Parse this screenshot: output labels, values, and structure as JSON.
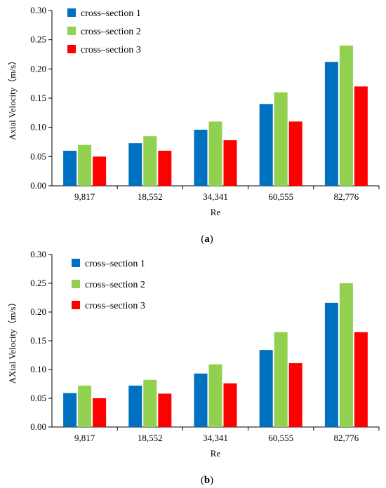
{
  "chart_data": [
    {
      "type": "bar",
      "caption": {
        "open": "(",
        "letter": "a",
        "close": ")"
      },
      "xlabel": "Re",
      "ylabel": "Axial Velocity（m/s）",
      "categories": [
        "9,817",
        "18,552",
        "34,341",
        "60,555",
        "82,776"
      ],
      "ylim": [
        0,
        0.3
      ],
      "yticks": [
        "0.00",
        "0.05",
        "0.10",
        "0.15",
        "0.20",
        "0.25",
        "0.30"
      ],
      "legend_position": "top-left",
      "grid": false,
      "series": [
        {
          "name": "cross–section 1",
          "color": "#0070c0",
          "values": [
            0.06,
            0.073,
            0.096,
            0.14,
            0.212
          ]
        },
        {
          "name": "cross–section 2",
          "color": "#92d050",
          "values": [
            0.07,
            0.085,
            0.11,
            0.16,
            0.24
          ]
        },
        {
          "name": "cross–section 3",
          "color": "#ff0000",
          "values": [
            0.05,
            0.06,
            0.078,
            0.11,
            0.17
          ]
        }
      ]
    },
    {
      "type": "bar",
      "caption": {
        "open": "(",
        "letter": "b",
        "close": ")"
      },
      "xlabel": "Re",
      "ylabel": "AXial Velocity（m/s）",
      "categories": [
        "9,817",
        "18,552",
        "34,341",
        "60,555",
        "82,776"
      ],
      "ylim": [
        0,
        0.3
      ],
      "yticks": [
        "0.00",
        "0.05",
        "0.10",
        "0.15",
        "0.20",
        "0.25",
        "0.30"
      ],
      "legend_position": "top-left",
      "grid": false,
      "series": [
        {
          "name": "cross–section 1",
          "color": "#0070c0",
          "values": [
            0.059,
            0.072,
            0.093,
            0.134,
            0.216
          ]
        },
        {
          "name": "cross–section 2",
          "color": "#92d050",
          "values": [
            0.072,
            0.082,
            0.109,
            0.165,
            0.25
          ]
        },
        {
          "name": "cross–section 3",
          "color": "#ff0000",
          "values": [
            0.05,
            0.058,
            0.076,
            0.111,
            0.165
          ]
        }
      ]
    }
  ]
}
